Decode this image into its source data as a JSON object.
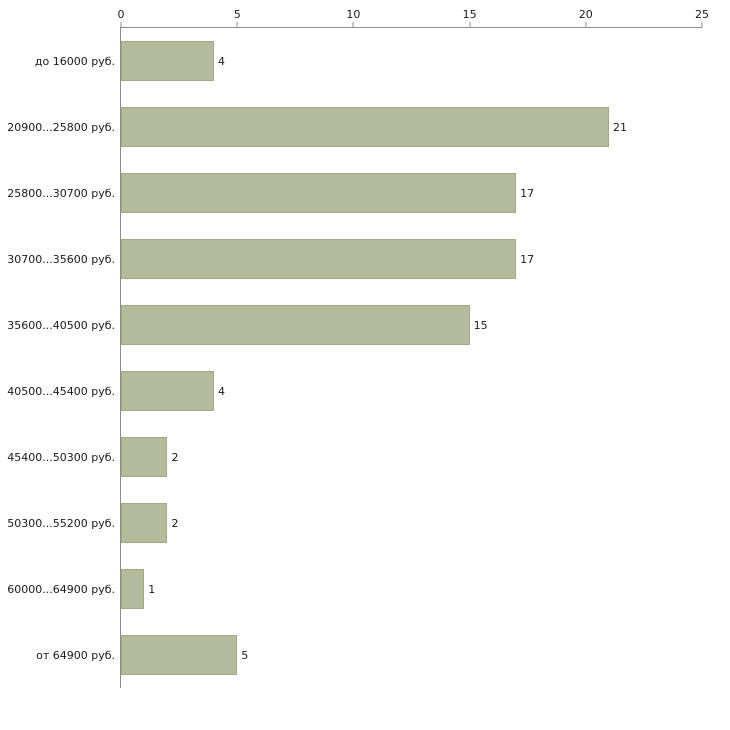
{
  "chart_data": {
    "type": "bar",
    "orientation": "horizontal",
    "title": "",
    "xlabel": "",
    "ylabel": "",
    "categories": [
      "до 16000 руб.",
      "20900...25800 руб.",
      "25800...30700 руб.",
      "30700...35600 руб.",
      "35600...40500 руб.",
      "40500...45400 руб.",
      "45400...50300 руб.",
      "50300...55200 руб.",
      "60000...64900 руб.",
      "от 64900 руб."
    ],
    "values": [
      4,
      21,
      17,
      17,
      15,
      4,
      2,
      2,
      1,
      5
    ],
    "xlim": [
      0,
      25
    ],
    "x_ticks": [
      0,
      5,
      10,
      15,
      20,
      25
    ],
    "grid": false,
    "legend": false,
    "value_labels": true,
    "bar_color": "#b4ba9c",
    "bar_border_color": "#a2aa84",
    "axis_color": "#8c8c8c",
    "text_color": "#1a1a1a"
  }
}
